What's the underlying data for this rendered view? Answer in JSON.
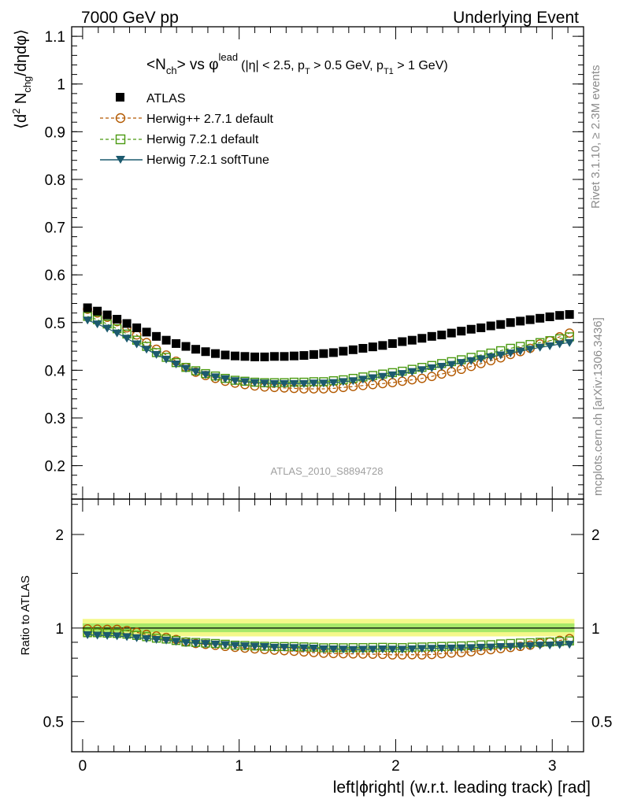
{
  "header": {
    "left": "7000 GeV pp",
    "right": "Underlying Event"
  },
  "side": {
    "rivet": "Rivet 3.1.10, ≥ 2.3M events",
    "mcplots": "mcplots.cern.ch [arXiv:1306.3436]"
  },
  "plot_title": {
    "main": "<N",
    "main_sub": "ch",
    "main_rest": "> vs φ",
    "main_sup": "lead",
    "cuts_a": "(|η| < 2.5, p",
    "cuts_a_sub": "T",
    "cuts_b": " > 0.5 GeV, p",
    "cuts_b_sub": "T1",
    "cuts_c": " > 1 GeV)"
  },
  "ylabel_main": {
    "a": "⟨d",
    "sup": "2",
    "b": " N",
    "sub": "chg",
    "c": "/dηdφ⟩"
  },
  "ylabel_ratio": "Ratio to ATLAS",
  "xlabel": "left|ϕright| (w.r.t. leading track) [rad]",
  "analysis_tag": "ATLAS_2010_S8894728",
  "legend": [
    "ATLAS",
    "Herwig++ 2.7.1 default",
    "Herwig 7.2.1 default",
    "Herwig 7.2.1 softTune"
  ],
  "colors": {
    "atlas": "#000000",
    "herwigpp": "#b35900",
    "herwig7": "#4a9a10",
    "softtune": "#1c5a6e",
    "band_outer": "#f4f88a",
    "band_inner": "#a7e86a"
  },
  "chart_data": [
    {
      "type": "scatter",
      "panel": "main",
      "xlim": [
        -0.07,
        3.2
      ],
      "ylim": [
        0.13,
        1.12
      ],
      "xticks": [
        0,
        1,
        2,
        3
      ],
      "yticks": [
        0.2,
        0.3,
        0.4,
        0.5,
        0.6,
        0.7,
        0.8,
        0.9,
        1,
        1.1
      ],
      "ytick_labels": [
        "0.2",
        "0.3",
        "0.4",
        "0.5",
        "0.6",
        "0.7",
        "0.8",
        "0.9",
        "1",
        "1.1"
      ],
      "x": [
        0.0314,
        0.0942,
        0.1571,
        0.2199,
        0.2827,
        0.3456,
        0.4084,
        0.4712,
        0.5341,
        0.5969,
        0.6597,
        0.7226,
        0.7854,
        0.8482,
        0.9111,
        0.9739,
        1.0367,
        1.0996,
        1.1624,
        1.2252,
        1.2881,
        1.3509,
        1.4137,
        1.4765,
        1.5394,
        1.6022,
        1.665,
        1.7279,
        1.7907,
        1.8535,
        1.9164,
        1.9792,
        2.042,
        2.1049,
        2.1677,
        2.2305,
        2.2934,
        2.3562,
        2.419,
        2.4819,
        2.5447,
        2.6075,
        2.6704,
        2.7332,
        2.796,
        2.8588,
        2.9217,
        2.9845,
        3.0473,
        3.1102
      ],
      "series": [
        {
          "name": "ATLAS",
          "marker": "square",
          "values": [
            0.531,
            0.524,
            0.516,
            0.507,
            0.498,
            0.489,
            0.48,
            0.471,
            0.463,
            0.456,
            0.45,
            0.444,
            0.439,
            0.435,
            0.432,
            0.43,
            0.429,
            0.428,
            0.428,
            0.429,
            0.429,
            0.43,
            0.431,
            0.433,
            0.435,
            0.437,
            0.44,
            0.443,
            0.446,
            0.449,
            0.452,
            0.456,
            0.46,
            0.463,
            0.467,
            0.471,
            0.474,
            0.478,
            0.482,
            0.486,
            0.489,
            0.493,
            0.496,
            0.5,
            0.503,
            0.506,
            0.509,
            0.512,
            0.515,
            0.517
          ]
        },
        {
          "name": "Herwig++ 2.7.1 default",
          "marker": "circle",
          "values": [
            0.528,
            0.52,
            0.511,
            0.502,
            0.489,
            0.474,
            0.458,
            0.444,
            0.432,
            0.419,
            0.406,
            0.396,
            0.389,
            0.383,
            0.377,
            0.373,
            0.37,
            0.367,
            0.365,
            0.364,
            0.363,
            0.362,
            0.361,
            0.361,
            0.361,
            0.362,
            0.364,
            0.366,
            0.368,
            0.37,
            0.372,
            0.374,
            0.377,
            0.38,
            0.383,
            0.387,
            0.392,
            0.397,
            0.402,
            0.408,
            0.414,
            0.42,
            0.426,
            0.433,
            0.439,
            0.446,
            0.455,
            0.462,
            0.47,
            0.478
          ]
        },
        {
          "name": "Herwig 7.2.1 default",
          "marker": "square-open",
          "values": [
            0.513,
            0.506,
            0.497,
            0.487,
            0.476,
            0.463,
            0.45,
            0.437,
            0.427,
            0.416,
            0.406,
            0.399,
            0.393,
            0.388,
            0.383,
            0.379,
            0.377,
            0.375,
            0.374,
            0.374,
            0.374,
            0.375,
            0.375,
            0.376,
            0.376,
            0.378,
            0.38,
            0.383,
            0.386,
            0.389,
            0.392,
            0.395,
            0.398,
            0.402,
            0.406,
            0.41,
            0.414,
            0.418,
            0.422,
            0.427,
            0.432,
            0.436,
            0.441,
            0.446,
            0.45,
            0.454,
            0.458,
            0.462,
            0.466,
            0.47
          ]
        },
        {
          "name": "Herwig 7.2.1 softTune",
          "marker": "triangle-down",
          "values": [
            0.505,
            0.497,
            0.488,
            0.478,
            0.467,
            0.455,
            0.444,
            0.433,
            0.423,
            0.413,
            0.404,
            0.397,
            0.391,
            0.386,
            0.382,
            0.378,
            0.376,
            0.374,
            0.373,
            0.372,
            0.372,
            0.372,
            0.372,
            0.373,
            0.373,
            0.374,
            0.376,
            0.378,
            0.381,
            0.384,
            0.387,
            0.39,
            0.393,
            0.397,
            0.401,
            0.405,
            0.408,
            0.412,
            0.416,
            0.42,
            0.424,
            0.428,
            0.432,
            0.436,
            0.44,
            0.444,
            0.448,
            0.451,
            0.455,
            0.458
          ]
        }
      ]
    },
    {
      "type": "scatter",
      "panel": "ratio",
      "ylabel": "Ratio to ATLAS",
      "yscale": "log",
      "xlim": [
        -0.07,
        3.2
      ],
      "ylim": [
        0.4,
        2.6
      ],
      "xticks": [
        0,
        1,
        2,
        3
      ],
      "xtick_labels": [
        "0",
        "1",
        "2",
        "3"
      ],
      "yticks": [
        0.5,
        1,
        2
      ],
      "ytick_labels": [
        "0.5",
        "1",
        "2"
      ],
      "reference": 1,
      "band_outer": [
        0.94,
        1.07
      ],
      "band_inner": [
        0.97,
        1.035
      ],
      "series": [
        {
          "name": "Herwig++ 2.7.1 default",
          "marker": "circle",
          "values": [
            0.994,
            0.992,
            0.99,
            0.99,
            0.982,
            0.969,
            0.954,
            0.943,
            0.933,
            0.919,
            0.902,
            0.892,
            0.886,
            0.88,
            0.873,
            0.867,
            0.862,
            0.857,
            0.853,
            0.849,
            0.846,
            0.842,
            0.838,
            0.834,
            0.83,
            0.828,
            0.827,
            0.826,
            0.825,
            0.824,
            0.823,
            0.82,
            0.82,
            0.821,
            0.82,
            0.822,
            0.827,
            0.831,
            0.834,
            0.839,
            0.847,
            0.852,
            0.859,
            0.866,
            0.873,
            0.881,
            0.894,
            0.902,
            0.913,
            0.925
          ]
        },
        {
          "name": "Herwig 7.2.1 default",
          "marker": "square-open",
          "values": [
            0.966,
            0.966,
            0.963,
            0.961,
            0.956,
            0.947,
            0.938,
            0.928,
            0.922,
            0.912,
            0.902,
            0.899,
            0.895,
            0.892,
            0.887,
            0.881,
            0.879,
            0.876,
            0.874,
            0.872,
            0.872,
            0.872,
            0.87,
            0.868,
            0.864,
            0.865,
            0.864,
            0.865,
            0.865,
            0.866,
            0.867,
            0.866,
            0.865,
            0.868,
            0.869,
            0.871,
            0.873,
            0.874,
            0.876,
            0.878,
            0.883,
            0.884,
            0.889,
            0.892,
            0.895,
            0.897,
            0.9,
            0.902,
            0.905,
            0.909
          ]
        },
        {
          "name": "Herwig 7.2.1 softTune",
          "marker": "triangle-down",
          "values": [
            0.951,
            0.948,
            0.946,
            0.943,
            0.938,
            0.93,
            0.925,
            0.919,
            0.914,
            0.906,
            0.898,
            0.894,
            0.891,
            0.887,
            0.884,
            0.879,
            0.876,
            0.874,
            0.871,
            0.867,
            0.867,
            0.865,
            0.863,
            0.861,
            0.857,
            0.856,
            0.855,
            0.853,
            0.854,
            0.855,
            0.856,
            0.855,
            0.854,
            0.857,
            0.859,
            0.86,
            0.861,
            0.862,
            0.863,
            0.864,
            0.867,
            0.868,
            0.871,
            0.872,
            0.875,
            0.877,
            0.88,
            0.881,
            0.884,
            0.886
          ]
        }
      ]
    }
  ]
}
